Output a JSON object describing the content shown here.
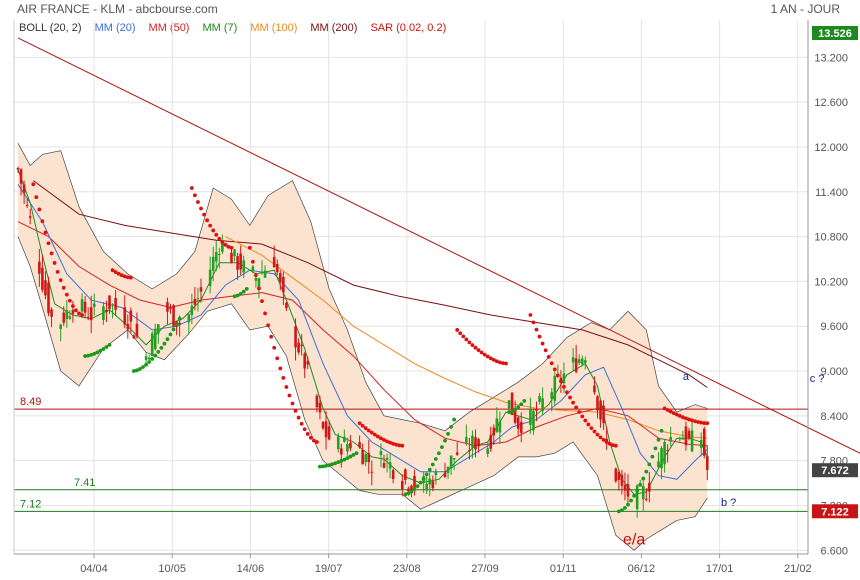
{
  "header": {
    "title": "AIR FRANCE - KLM - abcbourse.com",
    "period": "1 AN - JOUR"
  },
  "legend": [
    {
      "label": "BOLL (20, 2)",
      "color": "#333333"
    },
    {
      "label": "MM (20)",
      "color": "#3a6fd8"
    },
    {
      "label": "MM (50)",
      "color": "#d62020"
    },
    {
      "label": "MM (7)",
      "color": "#1e8a1e"
    },
    {
      "label": "MM (100)",
      "color": "#ee8a20"
    },
    {
      "label": "MM (200)",
      "color": "#7a1010"
    },
    {
      "label": "SAR (0.02, 0.2)",
      "color": "#d61010"
    }
  ],
  "chart_data": {
    "type": "candlestick",
    "yticks": [
      "13.200",
      "12.600",
      "12.000",
      "11.400",
      "10.800",
      "10.200",
      "9.600",
      "9.000",
      "8.400",
      "7.800",
      "7.200",
      "6.600"
    ],
    "ylim": [
      6.55,
      13.7
    ],
    "xticks": [
      "04/04",
      "10/05",
      "14/06",
      "19/07",
      "23/08",
      "27/09",
      "01/11",
      "06/12",
      "17/01",
      "21/02"
    ],
    "price_badges": [
      {
        "text": "13.526",
        "value": 13.526,
        "bg": "#1e8a1e"
      },
      {
        "text": "7.672",
        "value": 7.672,
        "bg": "#444444"
      },
      {
        "text": "7.122",
        "value": 7.122,
        "bg": "#c81414"
      }
    ],
    "horizontal_levels": [
      {
        "label": "8.49",
        "value": 8.49,
        "color": "#b01010"
      },
      {
        "label": "7.41",
        "value": 7.41,
        "color": "#1e7a1e"
      },
      {
        "label": "7.12",
        "value": 7.12,
        "color": "#1e7a1e"
      }
    ],
    "trendline": {
      "from": {
        "day": 0,
        "value": 13.46
      },
      "to": {
        "day": 280,
        "value": 7.82
      },
      "color": "#b01010"
    },
    "annotations": [
      {
        "text": "a",
        "day": 219,
        "value": 8.88,
        "color": "#1a1a8a"
      },
      {
        "text": "c ?",
        "day": 262,
        "value": 8.85,
        "color": "#1a1a8a"
      },
      {
        "text": "b ?",
        "day": 233,
        "value": 7.19,
        "color": "#1a1a8a"
      },
      {
        "text": "e/a",
        "day": 202,
        "value": 6.68,
        "color": "#c01010"
      }
    ],
    "close_path": [
      [
        0,
        11.7
      ],
      [
        4,
        11.0
      ],
      [
        8,
        10.2
      ],
      [
        12,
        9.55
      ],
      [
        18,
        9.9
      ],
      [
        24,
        9.75
      ],
      [
        30,
        9.9
      ],
      [
        36,
        9.7
      ],
      [
        42,
        9.2
      ],
      [
        48,
        9.85
      ],
      [
        54,
        9.6
      ],
      [
        60,
        10.05
      ],
      [
        66,
        10.7
      ],
      [
        72,
        10.45
      ],
      [
        78,
        10.25
      ],
      [
        84,
        10.5
      ],
      [
        88,
        9.75
      ],
      [
        94,
        9.1
      ],
      [
        100,
        8.2
      ],
      [
        104,
        8.0
      ],
      [
        110,
        8.05
      ],
      [
        116,
        7.75
      ],
      [
        120,
        7.85
      ],
      [
        126,
        7.55
      ],
      [
        132,
        7.45
      ],
      [
        138,
        7.6
      ],
      [
        144,
        7.9
      ],
      [
        150,
        8.05
      ],
      [
        154,
        8.0
      ],
      [
        160,
        8.65
      ],
      [
        164,
        8.3
      ],
      [
        168,
        8.35
      ],
      [
        174,
        8.7
      ],
      [
        180,
        9.0
      ],
      [
        186,
        9.25
      ],
      [
        190,
        8.6
      ],
      [
        194,
        7.8
      ],
      [
        198,
        7.4
      ],
      [
        202,
        7.3
      ],
      [
        206,
        7.4
      ],
      [
        212,
        8.0
      ],
      [
        216,
        8.2
      ],
      [
        220,
        8.05
      ],
      [
        224,
        8.1
      ],
      [
        226,
        7.672
      ]
    ],
    "ma7_path": [
      [
        0,
        11.7
      ],
      [
        4,
        11.25
      ],
      [
        8,
        10.55
      ],
      [
        12,
        9.9
      ],
      [
        18,
        9.75
      ],
      [
        24,
        9.7
      ],
      [
        30,
        9.82
      ],
      [
        36,
        9.6
      ],
      [
        42,
        9.35
      ],
      [
        48,
        9.6
      ],
      [
        54,
        9.7
      ],
      [
        60,
        9.95
      ],
      [
        66,
        10.45
      ],
      [
        72,
        10.45
      ],
      [
        78,
        10.3
      ],
      [
        84,
        10.35
      ],
      [
        88,
        9.95
      ],
      [
        94,
        9.3
      ],
      [
        100,
        8.5
      ],
      [
        104,
        8.15
      ],
      [
        110,
        8.05
      ],
      [
        116,
        7.85
      ],
      [
        120,
        7.82
      ],
      [
        126,
        7.6
      ],
      [
        132,
        7.5
      ],
      [
        138,
        7.55
      ],
      [
        144,
        7.8
      ],
      [
        150,
        8.0
      ],
      [
        154,
        8.05
      ],
      [
        160,
        8.45
      ],
      [
        164,
        8.4
      ],
      [
        168,
        8.35
      ],
      [
        174,
        8.55
      ],
      [
        180,
        8.95
      ],
      [
        186,
        9.1
      ],
      [
        190,
        8.8
      ],
      [
        194,
        8.05
      ],
      [
        198,
        7.55
      ],
      [
        202,
        7.35
      ],
      [
        206,
        7.38
      ],
      [
        212,
        7.85
      ],
      [
        216,
        8.1
      ],
      [
        220,
        8.1
      ],
      [
        224,
        8.05
      ],
      [
        226,
        7.85
      ]
    ],
    "ma20_path": [
      [
        0,
        11.5
      ],
      [
        8,
        11.0
      ],
      [
        16,
        10.3
      ],
      [
        24,
        9.95
      ],
      [
        34,
        9.85
      ],
      [
        44,
        9.55
      ],
      [
        52,
        9.6
      ],
      [
        60,
        9.75
      ],
      [
        68,
        10.15
      ],
      [
        76,
        10.35
      ],
      [
        84,
        10.3
      ],
      [
        92,
        9.95
      ],
      [
        100,
        9.1
      ],
      [
        108,
        8.4
      ],
      [
        116,
        8.05
      ],
      [
        124,
        7.85
      ],
      [
        132,
        7.65
      ],
      [
        140,
        7.65
      ],
      [
        148,
        7.85
      ],
      [
        156,
        8.05
      ],
      [
        162,
        8.25
      ],
      [
        170,
        8.35
      ],
      [
        178,
        8.6
      ],
      [
        186,
        8.95
      ],
      [
        192,
        9.05
      ],
      [
        198,
        8.5
      ],
      [
        204,
        7.9
      ],
      [
        210,
        7.6
      ],
      [
        216,
        7.55
      ],
      [
        222,
        7.8
      ],
      [
        226,
        7.95
      ]
    ],
    "ma50_path": [
      [
        0,
        11.0
      ],
      [
        10,
        10.8
      ],
      [
        20,
        10.4
      ],
      [
        30,
        10.15
      ],
      [
        40,
        9.95
      ],
      [
        50,
        9.85
      ],
      [
        60,
        9.95
      ],
      [
        70,
        10.0
      ],
      [
        80,
        10.05
      ],
      [
        90,
        9.95
      ],
      [
        100,
        9.55
      ],
      [
        110,
        9.2
      ],
      [
        120,
        8.75
      ],
      [
        130,
        8.35
      ],
      [
        140,
        8.1
      ],
      [
        150,
        8.0
      ],
      [
        160,
        8.05
      ],
      [
        170,
        8.25
      ],
      [
        180,
        8.4
      ],
      [
        190,
        8.5
      ],
      [
        200,
        8.4
      ],
      [
        210,
        8.1
      ],
      [
        220,
        8.02
      ],
      [
        226,
        8.0
      ]
    ],
    "ma100_path": [
      [
        68,
        10.8
      ],
      [
        80,
        10.55
      ],
      [
        90,
        10.25
      ],
      [
        100,
        9.95
      ],
      [
        110,
        9.6
      ],
      [
        120,
        9.35
      ],
      [
        130,
        9.1
      ],
      [
        140,
        8.9
      ],
      [
        150,
        8.72
      ],
      [
        160,
        8.58
      ],
      [
        170,
        8.5
      ],
      [
        180,
        8.47
      ],
      [
        190,
        8.45
      ],
      [
        200,
        8.35
      ],
      [
        210,
        8.2
      ],
      [
        220,
        8.12
      ],
      [
        226,
        8.1
      ]
    ],
    "ma200_path": [
      [
        5,
        11.55
      ],
      [
        20,
        11.1
      ],
      [
        35,
        10.95
      ],
      [
        50,
        10.85
      ],
      [
        65,
        10.75
      ],
      [
        80,
        10.7
      ],
      [
        95,
        10.45
      ],
      [
        110,
        10.15
      ],
      [
        125,
        10.0
      ],
      [
        140,
        9.88
      ],
      [
        155,
        9.75
      ],
      [
        170,
        9.65
      ],
      [
        185,
        9.55
      ],
      [
        200,
        9.35
      ],
      [
        210,
        9.15
      ],
      [
        220,
        8.95
      ],
      [
        226,
        8.78
      ]
    ],
    "boll_upper_path": [
      [
        0,
        12.05
      ],
      [
        4,
        11.75
      ],
      [
        8,
        11.9
      ],
      [
        14,
        11.95
      ],
      [
        20,
        11.2
      ],
      [
        28,
        10.6
      ],
      [
        36,
        10.3
      ],
      [
        44,
        10.1
      ],
      [
        52,
        10.3
      ],
      [
        58,
        10.6
      ],
      [
        64,
        11.45
      ],
      [
        70,
        11.3
      ],
      [
        76,
        10.95
      ],
      [
        82,
        11.35
      ],
      [
        90,
        11.55
      ],
      [
        96,
        11.0
      ],
      [
        102,
        10.1
      ],
      [
        108,
        9.55
      ],
      [
        114,
        8.85
      ],
      [
        120,
        8.4
      ],
      [
        126,
        8.35
      ],
      [
        132,
        8.3
      ],
      [
        140,
        8.2
      ],
      [
        148,
        8.45
      ],
      [
        156,
        8.65
      ],
      [
        164,
        8.85
      ],
      [
        172,
        9.1
      ],
      [
        180,
        9.45
      ],
      [
        188,
        9.65
      ],
      [
        194,
        9.55
      ],
      [
        200,
        9.8
      ],
      [
        206,
        9.55
      ],
      [
        210,
        8.8
      ],
      [
        216,
        8.45
      ],
      [
        222,
        8.55
      ],
      [
        226,
        8.5
      ]
    ],
    "boll_lower_path": [
      [
        0,
        10.8
      ],
      [
        4,
        10.4
      ],
      [
        8,
        9.85
      ],
      [
        14,
        9.0
      ],
      [
        20,
        8.8
      ],
      [
        28,
        9.3
      ],
      [
        36,
        9.55
      ],
      [
        42,
        9.25
      ],
      [
        48,
        9.15
      ],
      [
        56,
        9.5
      ],
      [
        62,
        9.8
      ],
      [
        70,
        9.9
      ],
      [
        76,
        9.55
      ],
      [
        82,
        9.6
      ],
      [
        88,
        9.2
      ],
      [
        94,
        8.35
      ],
      [
        100,
        7.8
      ],
      [
        106,
        7.6
      ],
      [
        112,
        7.4
      ],
      [
        118,
        7.35
      ],
      [
        126,
        7.35
      ],
      [
        132,
        7.15
      ],
      [
        140,
        7.3
      ],
      [
        148,
        7.45
      ],
      [
        156,
        7.6
      ],
      [
        164,
        7.85
      ],
      [
        170,
        7.85
      ],
      [
        176,
        7.9
      ],
      [
        182,
        8.05
      ],
      [
        190,
        7.6
      ],
      [
        196,
        6.8
      ],
      [
        202,
        6.6
      ],
      [
        206,
        6.75
      ],
      [
        212,
        6.9
      ],
      [
        216,
        7.0
      ],
      [
        222,
        7.05
      ],
      [
        226,
        7.3
      ]
    ],
    "sar_segments": [
      {
        "dir": "above",
        "start": [
          5,
          11.5
        ],
        "end": [
          21,
          9.75
        ]
      },
      {
        "dir": "below",
        "start": [
          22,
          9.2
        ],
        "end": [
          30,
          9.35
        ]
      },
      {
        "dir": "above",
        "start": [
          31,
          10.35
        ],
        "end": [
          37,
          10.25
        ]
      },
      {
        "dir": "below",
        "start": [
          38,
          9.0
        ],
        "end": [
          53,
          9.7
        ]
      },
      {
        "dir": "above",
        "start": [
          57,
          11.45
        ],
        "end": [
          70,
          10.65
        ]
      },
      {
        "dir": "below",
        "start": [
          71,
          10.0
        ],
        "end": [
          75,
          10.1
        ]
      },
      {
        "dir": "above",
        "start": [
          76,
          10.65
        ],
        "end": [
          98,
          8.05
        ]
      },
      {
        "dir": "below",
        "start": [
          99,
          7.72
        ],
        "end": [
          111,
          7.9
        ]
      },
      {
        "dir": "above",
        "start": [
          112,
          8.3
        ],
        "end": [
          126,
          8.0
        ]
      },
      {
        "dir": "below",
        "start": [
          127,
          7.35
        ],
        "end": [
          143,
          8.35
        ]
      },
      {
        "dir": "above",
        "start": [
          144,
          9.55
        ],
        "end": [
          160,
          9.1
        ]
      },
      {
        "dir": "below",
        "start": [
          161,
          8.45
        ],
        "end": [
          166,
          8.6
        ]
      },
      {
        "dir": "above",
        "start": [
          168,
          9.75
        ],
        "end": [
          196,
          8.0
        ]
      },
      {
        "dir": "below",
        "start": [
          197,
          7.12
        ],
        "end": [
          211,
          8.2
        ]
      },
      {
        "dir": "above",
        "start": [
          212,
          8.5
        ],
        "end": [
          226,
          8.3
        ]
      }
    ]
  }
}
